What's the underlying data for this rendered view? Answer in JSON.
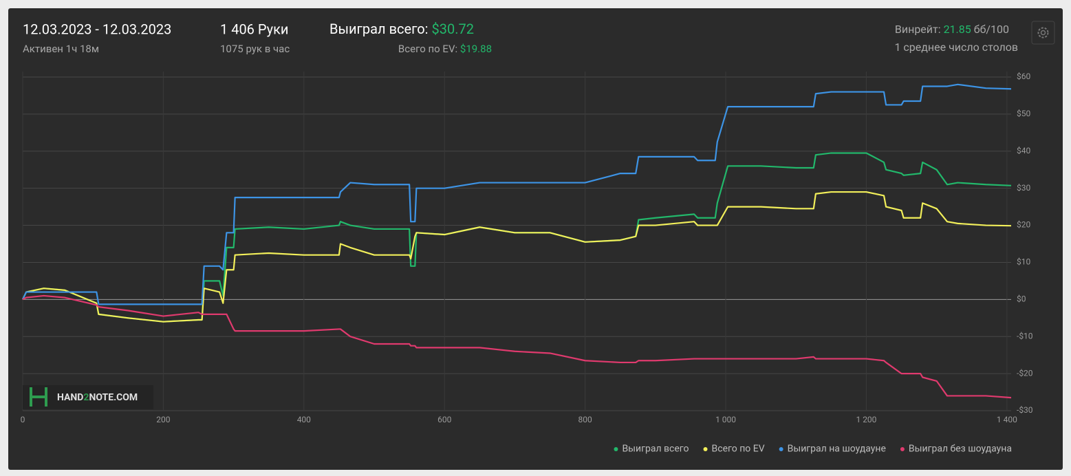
{
  "header": {
    "date_range": "12.03.2023 - 12.03.2023",
    "active": "Активен 1ч 18м",
    "hands": "1 406 Руки",
    "hands_per_hour": "1075 рук в час",
    "won_total_label": "Выиграл всего:",
    "won_total_value": "$30.72",
    "ev_label": "Всего по EV:",
    "ev_value": "$19.88",
    "winrate_label": "Винрейт:",
    "winrate_value": "21.85",
    "winrate_unit": "бб/100",
    "tables": "1 среднее число столов"
  },
  "watermark": [
    "HAND",
    "2",
    "NOTE.COM"
  ],
  "chart_data": {
    "type": "line",
    "grid": true,
    "x": [
      0,
      5,
      30,
      60,
      105,
      108,
      150,
      200,
      250,
      255,
      258,
      280,
      285,
      290,
      300,
      302,
      350,
      400,
      450,
      452,
      466,
      500,
      550,
      552,
      558,
      560,
      600,
      650,
      700,
      750,
      800,
      850,
      872,
      876,
      900,
      955,
      960,
      985,
      988,
      1003,
      1050,
      1100,
      1125,
      1128,
      1150,
      1200,
      1225,
      1228,
      1250,
      1253,
      1277,
      1280,
      1300,
      1315,
      1330,
      1370,
      1406
    ],
    "series": [
      {
        "name": "Выиграл всего",
        "color": "#22b86b",
        "values": [
          0,
          2,
          3,
          2.5,
          -1,
          -4,
          -5,
          -6,
          -5.5,
          -5.5,
          5,
          5,
          1,
          14,
          14,
          19,
          19.5,
          19,
          20,
          21,
          20,
          19,
          19,
          9,
          9,
          18,
          17.5,
          19.5,
          18,
          18,
          15.5,
          16,
          17,
          21.5,
          22,
          23,
          22,
          22,
          26,
          36,
          36,
          35.5,
          35.5,
          39,
          39.5,
          39.5,
          37,
          35,
          34,
          33.5,
          34,
          37,
          35,
          31,
          31.5,
          31,
          30.72
        ]
      },
      {
        "name": "Всего по EV",
        "color": "#f2ef5a",
        "values": [
          0,
          2,
          3,
          2.5,
          -1,
          -4,
          -5,
          -6,
          -5.5,
          -5.5,
          3,
          2,
          -1,
          8,
          8,
          12,
          12.5,
          12,
          12,
          15,
          14,
          12,
          12,
          11,
          17,
          18,
          17.5,
          19.5,
          18,
          18,
          15.5,
          16,
          17,
          20,
          20,
          21,
          20,
          20,
          20,
          25,
          25,
          24.5,
          24.5,
          28.5,
          29,
          29,
          28,
          25,
          24,
          22,
          22,
          26,
          24.5,
          21,
          20.5,
          20,
          19.88
        ]
      },
      {
        "name": "Выиграл на шоудауне",
        "color": "#3d94e6",
        "values": [
          0,
          2,
          2,
          2,
          2,
          -1.3,
          -1.3,
          -1.3,
          -1.3,
          -1.3,
          9,
          9,
          8,
          18,
          18,
          27.5,
          27.5,
          27.5,
          27.5,
          29,
          31.5,
          31,
          31,
          21,
          21,
          30,
          30,
          31.5,
          31.5,
          31.5,
          31.5,
          34,
          34,
          38.5,
          38.5,
          38.5,
          37.5,
          37.5,
          42.5,
          52,
          52,
          52,
          52,
          55.5,
          56,
          56,
          56,
          52.5,
          52.5,
          53.5,
          53.5,
          57.5,
          57.5,
          57.5,
          58,
          57,
          56.8
        ]
      },
      {
        "name": "Выиграл без шоудауна",
        "color": "#e03a6e",
        "values": [
          0,
          0.5,
          1,
          0.5,
          -1.5,
          -2,
          -3,
          -4.5,
          -3.5,
          -4,
          -4,
          -4,
          -4,
          -4,
          -8,
          -8.5,
          -8.5,
          -8.5,
          -8,
          -8,
          -10,
          -12,
          -12,
          -12.5,
          -12.5,
          -13,
          -13,
          -13,
          -14,
          -14.5,
          -16.5,
          -17,
          -17,
          -16.5,
          -16.5,
          -16,
          -16,
          -16,
          -16,
          -16,
          -16,
          -16,
          -15.5,
          -16,
          -16,
          -16,
          -16.5,
          -17,
          -20,
          -20,
          -20,
          -21,
          -22,
          -26,
          -26,
          -26,
          -26.5
        ]
      }
    ],
    "xlim": [
      0,
      1406
    ],
    "xticks": [
      0,
      200,
      400,
      600,
      800,
      {
        "value": 1000,
        "label": "1 000"
      },
      {
        "value": 1200,
        "label": "1 200"
      },
      {
        "value": 1400,
        "label": "1 400"
      }
    ],
    "ylim": [
      -30,
      60
    ],
    "yticks": [
      {
        "value": -30,
        "label": "-$30"
      },
      {
        "value": -20,
        "label": "-$20"
      },
      {
        "value": -10,
        "label": "-$10"
      },
      {
        "value": 0,
        "label": "$0"
      },
      {
        "value": 10,
        "label": "$10"
      },
      {
        "value": 20,
        "label": "$20"
      },
      {
        "value": 30,
        "label": "$30"
      },
      {
        "value": 40,
        "label": "$40"
      },
      {
        "value": 50,
        "label": "$50"
      },
      {
        "value": 60,
        "label": "$60"
      }
    ]
  }
}
